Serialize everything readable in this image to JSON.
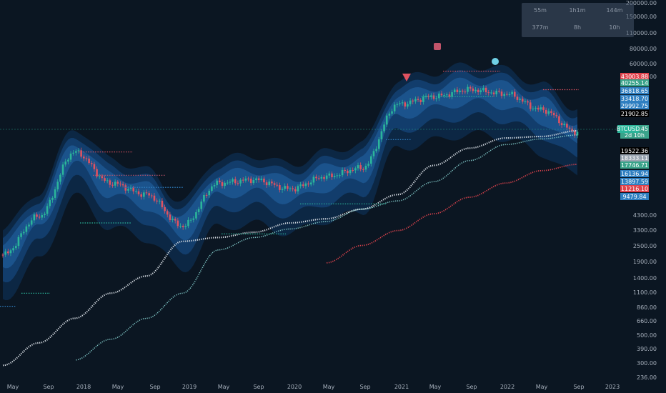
{
  "timeframe_panel": {
    "row1": [
      "55m",
      "1h1m",
      "144m"
    ],
    "row2": [
      "377m",
      "8h",
      "10h"
    ]
  },
  "price_axis": {
    "ticks": [
      "200000.00",
      "150000.00",
      "110000.00",
      "80000.00",
      "60000.00",
      "43000.00",
      "4300.00",
      "3300.00",
      "2500.00",
      "1900.00",
      "1400.00",
      "1100.00",
      "860.00",
      "660.00",
      "500.00",
      "390.00",
      "300.00",
      "236.00"
    ],
    "badges": [
      {
        "text": "43003.88",
        "color": "#e0434d"
      },
      {
        "text": "40255.14",
        "color": "#3aa38a"
      },
      {
        "text": "36818.65",
        "color": "#2f7fc1"
      },
      {
        "text": "33418.70",
        "color": "#2f7fc1"
      },
      {
        "text": "29992.75",
        "color": "#2f7fc1"
      },
      {
        "text": "21902.85",
        "color": "#000000"
      },
      {
        "text": "19960.45",
        "color": "#3aa38a"
      },
      {
        "text": "2d 10h",
        "color": "#3aa38a"
      },
      {
        "text": "19522.36",
        "color": "#000000"
      },
      {
        "text": "18333.11",
        "color": "#9aa5b1"
      },
      {
        "text": "17746.71",
        "color": "#3aa38a"
      },
      {
        "text": "16136.94",
        "color": "#2f7fc1"
      },
      {
        "text": "13897.59",
        "color": "#2f7fc1"
      },
      {
        "text": "11216.10",
        "color": "#e0434d"
      },
      {
        "text": "9479.84",
        "color": "#2f7fc1"
      }
    ],
    "symbol_badge": "BTCUSD"
  },
  "colors": {
    "background": "#0b1622",
    "band_dark": "#0d2a4a",
    "band_mid": "#14467a",
    "band_light": "#1f5d9a",
    "up_candle": "#2bb59a",
    "down_candle": "#e05260",
    "ma_white": "#d7dde4",
    "ma_teal": "#7fc6c6",
    "ma_red": "#e0434d"
  },
  "chart_data": {
    "type": "line",
    "title": "",
    "xlabel": "",
    "ylabel": "",
    "y_scale": "log",
    "ylim": [
      236,
      200000
    ],
    "x_tick_labels": [
      "May",
      "Sep",
      "2018",
      "May",
      "Sep",
      "2019",
      "May",
      "Sep",
      "2020",
      "May",
      "Sep",
      "2021",
      "May",
      "Sep",
      "2022",
      "May",
      "Sep",
      "2023"
    ],
    "x": [
      "2017-05",
      "2017-09",
      "2018-01",
      "2018-05",
      "2018-09",
      "2019-01",
      "2019-05",
      "2019-09",
      "2020-01",
      "2020-05",
      "2020-09",
      "2021-01",
      "2021-05",
      "2021-09",
      "2022-01",
      "2022-05",
      "2022-09"
    ],
    "series": [
      {
        "values": [
          2200,
          4400,
          14000,
          8000,
          6500,
          3700,
          8000,
          8500,
          7200,
          9000,
          10500,
          33000,
          38000,
          43000,
          40000,
          30000,
          19960
        ]
      },
      {
        "values": [
          300,
          450,
          700,
          1100,
          1500,
          2800,
          3000,
          3300,
          3900,
          4200,
          5000,
          6500,
          11000,
          15000,
          18000,
          18500,
          20500
        ]
      },
      {
        "values": [
          null,
          null,
          330,
          480,
          700,
          1100,
          2400,
          3000,
          3500,
          4000,
          5000,
          5800,
          8200,
          12000,
          16000,
          17700,
          19000
        ]
      },
      {
        "values": [
          null,
          null,
          null,
          null,
          null,
          null,
          null,
          null,
          null,
          1900,
          2600,
          3400,
          4600,
          6200,
          8000,
          10000,
          11200
        ]
      }
    ],
    "grid": false
  }
}
